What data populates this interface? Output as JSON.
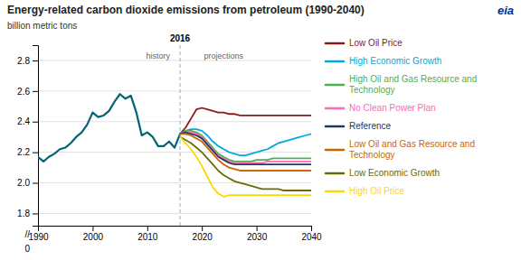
{
  "chart_data": {
    "type": "line",
    "title": "Energy-related carbon dioxide emissions from petroleum (1990-2040)",
    "ylabel": "billion metric tons",
    "xlim": [
      1990,
      2040
    ],
    "xticks": [
      1990,
      2000,
      2010,
      2020,
      2030,
      2040
    ],
    "ylim": [
      1.72,
      2.9
    ],
    "yticks": [
      1.8,
      {
        "value": 2.0,
        "label": "2.0"
      },
      2.2,
      2.4,
      2.6,
      2.8
    ],
    "grid": true,
    "legend": "right",
    "y_break_labels": [
      "//",
      "0"
    ],
    "logo": {
      "text": "eia",
      "color": "#003399"
    },
    "vline": {
      "x": 2016,
      "label": "2016"
    },
    "annotations": [
      {
        "text": "history",
        "x": 2012,
        "y": 2.855
      },
      {
        "text": "projections",
        "x": 2024,
        "y": 2.855
      }
    ],
    "series": [
      {
        "color": "#006475",
        "x": [
          1990,
          1991,
          1992,
          1993,
          1994,
          1995,
          1996,
          1997,
          1998,
          1999,
          2000,
          2001,
          2002,
          2003,
          2004,
          2005,
          2006,
          2007,
          2008,
          2009,
          2010,
          2011,
          2012,
          2013,
          2014,
          2015,
          2016
        ],
        "values": [
          2.17,
          2.14,
          2.17,
          2.19,
          2.22,
          2.23,
          2.26,
          2.3,
          2.33,
          2.38,
          2.46,
          2.43,
          2.44,
          2.47,
          2.53,
          2.58,
          2.55,
          2.57,
          2.46,
          2.31,
          2.33,
          2.3,
          2.24,
          2.24,
          2.27,
          2.23,
          2.32
        ]
      },
      {
        "name": "Low Oil Price",
        "color": "#8B1A1A",
        "x": [
          2016,
          2017,
          2018,
          2019,
          2020,
          2021,
          2022,
          2023,
          2024,
          2025,
          2026,
          2027,
          2028,
          2029,
          2030,
          2031,
          2032,
          2033,
          2034,
          2035,
          2036,
          2037,
          2038,
          2039,
          2040
        ],
        "values": [
          2.32,
          2.36,
          2.42,
          2.48,
          2.49,
          2.48,
          2.47,
          2.46,
          2.46,
          2.45,
          2.45,
          2.44,
          2.44,
          2.44,
          2.44,
          2.44,
          2.44,
          2.44,
          2.44,
          2.44,
          2.44,
          2.44,
          2.44,
          2.44,
          2.44
        ]
      },
      {
        "name": "High Economic Growth",
        "color": "#00AADD",
        "x": [
          2016,
          2017,
          2018,
          2019,
          2020,
          2021,
          2022,
          2023,
          2024,
          2025,
          2026,
          2027,
          2028,
          2029,
          2030,
          2031,
          2032,
          2033,
          2034,
          2035,
          2036,
          2037,
          2038,
          2039,
          2040
        ],
        "values": [
          2.32,
          2.34,
          2.35,
          2.35,
          2.34,
          2.31,
          2.27,
          2.24,
          2.22,
          2.2,
          2.19,
          2.18,
          2.18,
          2.19,
          2.2,
          2.21,
          2.22,
          2.24,
          2.26,
          2.27,
          2.28,
          2.29,
          2.3,
          2.31,
          2.32
        ]
      },
      {
        "name": "High Oil and Gas Resource and Technology",
        "color": "#4CAF50",
        "x": [
          2016,
          2017,
          2018,
          2019,
          2020,
          2021,
          2022,
          2023,
          2024,
          2025,
          2026,
          2027,
          2028,
          2029,
          2030,
          2031,
          2032,
          2033,
          2034,
          2035,
          2036,
          2037,
          2038,
          2039,
          2040
        ],
        "values": [
          2.32,
          2.34,
          2.34,
          2.33,
          2.31,
          2.27,
          2.23,
          2.19,
          2.17,
          2.15,
          2.14,
          2.14,
          2.14,
          2.14,
          2.15,
          2.15,
          2.15,
          2.16,
          2.16,
          2.16,
          2.16,
          2.16,
          2.16,
          2.16,
          2.16
        ]
      },
      {
        "name": "No Clean Power Plan",
        "color": "#FF69B4",
        "x": [
          2016,
          2017,
          2018,
          2019,
          2020,
          2021,
          2022,
          2023,
          2024,
          2025,
          2026,
          2027,
          2028,
          2029,
          2030,
          2031,
          2032,
          2033,
          2034,
          2035,
          2036,
          2037,
          2038,
          2039,
          2040
        ],
        "values": [
          2.32,
          2.33,
          2.33,
          2.32,
          2.3,
          2.26,
          2.22,
          2.18,
          2.16,
          2.14,
          2.13,
          2.13,
          2.13,
          2.13,
          2.13,
          2.13,
          2.14,
          2.14,
          2.14,
          2.14,
          2.14,
          2.14,
          2.14,
          2.14,
          2.14
        ]
      },
      {
        "name": "Reference",
        "color": "#1F3864",
        "x": [
          2016,
          2017,
          2018,
          2019,
          2020,
          2021,
          2022,
          2023,
          2024,
          2025,
          2026,
          2027,
          2028,
          2029,
          2030,
          2031,
          2032,
          2033,
          2034,
          2035,
          2036,
          2037,
          2038,
          2039,
          2040
        ],
        "values": [
          2.32,
          2.33,
          2.32,
          2.31,
          2.29,
          2.25,
          2.21,
          2.17,
          2.15,
          2.13,
          2.12,
          2.12,
          2.12,
          2.12,
          2.12,
          2.12,
          2.12,
          2.12,
          2.12,
          2.12,
          2.12,
          2.12,
          2.12,
          2.12,
          2.12
        ]
      },
      {
        "name": "Low Oil and Gas Resource and Technology",
        "color": "#CC6600",
        "x": [
          2016,
          2017,
          2018,
          2019,
          2020,
          2021,
          2022,
          2023,
          2024,
          2025,
          2026,
          2027,
          2028,
          2029,
          2030,
          2031,
          2032,
          2033,
          2034,
          2035,
          2036,
          2037,
          2038,
          2039,
          2040
        ],
        "values": [
          2.32,
          2.32,
          2.31,
          2.29,
          2.27,
          2.23,
          2.19,
          2.15,
          2.12,
          2.1,
          2.09,
          2.08,
          2.08,
          2.08,
          2.08,
          2.08,
          2.08,
          2.08,
          2.08,
          2.08,
          2.08,
          2.08,
          2.08,
          2.08,
          2.08
        ]
      },
      {
        "name": "Low Economic Growth",
        "color": "#6B6B00",
        "x": [
          2016,
          2017,
          2018,
          2019,
          2020,
          2021,
          2022,
          2023,
          2024,
          2025,
          2026,
          2027,
          2028,
          2029,
          2030,
          2031,
          2032,
          2033,
          2034,
          2035,
          2036,
          2037,
          2038,
          2039,
          2040
        ],
        "values": [
          2.3,
          2.28,
          2.26,
          2.23,
          2.2,
          2.16,
          2.12,
          2.08,
          2.05,
          2.03,
          2.01,
          2.0,
          1.99,
          1.98,
          1.97,
          1.96,
          1.96,
          1.96,
          1.96,
          1.95,
          1.95,
          1.95,
          1.95,
          1.95,
          1.95
        ]
      },
      {
        "name": "High Oil Price",
        "color": "#FFD700",
        "x": [
          2016,
          2017,
          2018,
          2019,
          2020,
          2021,
          2022,
          2023,
          2024,
          2025,
          2026,
          2027,
          2028,
          2029,
          2030,
          2031,
          2032,
          2033,
          2034,
          2035,
          2036,
          2037,
          2038,
          2039,
          2040
        ],
        "values": [
          2.3,
          2.26,
          2.22,
          2.17,
          2.11,
          2.04,
          1.97,
          1.93,
          1.91,
          1.92,
          1.92,
          1.92,
          1.92,
          1.92,
          1.92,
          1.92,
          1.92,
          1.92,
          1.92,
          1.92,
          1.92,
          1.92,
          1.92,
          1.92,
          1.92
        ]
      }
    ]
  }
}
